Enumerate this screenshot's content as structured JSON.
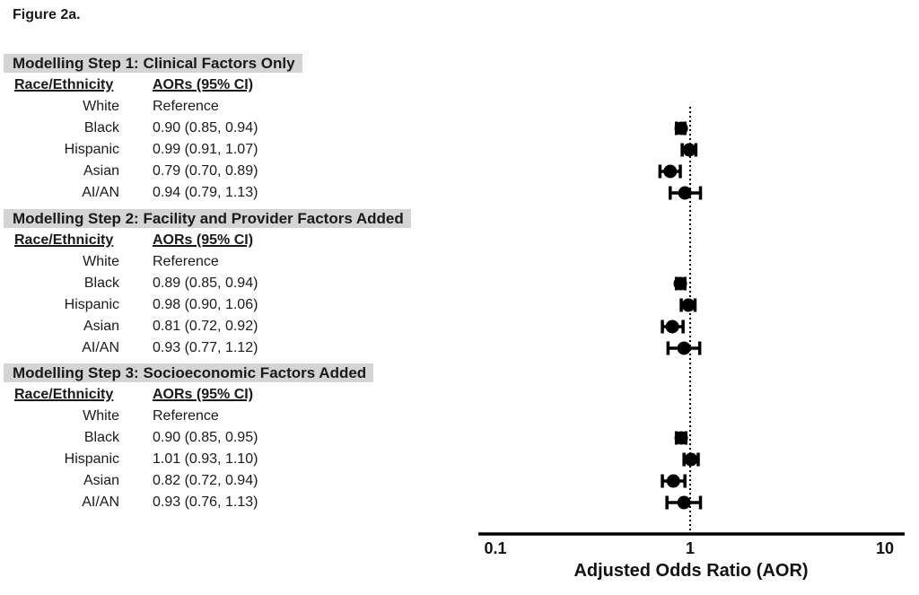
{
  "figure_label": "Figure 2a.",
  "columns": {
    "race": "Race/Ethnicity",
    "aor": "AORs (95% CI)"
  },
  "sections": [
    {
      "header": "Modelling Step 1: Clinical Factors Only",
      "rows": [
        {
          "race": "White",
          "value": "Reference"
        },
        {
          "race": "Black",
          "value": "0.90 (0.85, 0.94)"
        },
        {
          "race": "Hispanic",
          "value": "0.99 (0.91, 1.07)"
        },
        {
          "race": "Asian",
          "value": "0.79 (0.70, 0.89)"
        },
        {
          "race": "AI/AN",
          "value": "0.94 (0.79, 1.13)"
        }
      ]
    },
    {
      "header": "Modelling Step 2: Facility and Provider Factors Added",
      "rows": [
        {
          "race": "White",
          "value": "Reference"
        },
        {
          "race": "Black",
          "value": "0.89 (0.85, 0.94)"
        },
        {
          "race": "Hispanic",
          "value": "0.98 (0.90, 1.06)"
        },
        {
          "race": "Asian",
          "value": "0.81 (0.72, 0.92)"
        },
        {
          "race": "AI/AN",
          "value": "0.93 (0.77, 1.12)"
        }
      ]
    },
    {
      "header": "Modelling Step 3: Socioeconomic Factors Added",
      "rows": [
        {
          "race": "White",
          "value": "Reference"
        },
        {
          "race": "Black",
          "value": "0.90 (0.85, 0.95)"
        },
        {
          "race": "Hispanic",
          "value": "1.01 (0.93, 1.10)"
        },
        {
          "race": "Asian",
          "value": "0.82 (0.72, 0.94)"
        },
        {
          "race": "AI/AN",
          "value": "0.93 (0.76, 1.13)"
        }
      ]
    }
  ],
  "chart_data": {
    "type": "scatter",
    "variant": "forest-plot",
    "xscale": "log",
    "xlim": [
      0.1,
      10
    ],
    "xticks": [
      "0.1",
      "1",
      "10"
    ],
    "xtick_values": [
      0.1,
      1,
      10
    ],
    "xlabel": "Adjusted Odds Ratio (AOR)",
    "reference_line": 1.0,
    "grid": false,
    "marker": "filled-circle-with-ci-caps",
    "groups": [
      {
        "name": "Modelling Step 1: Clinical Factors Only",
        "points": [
          {
            "label": "White",
            "aor": null,
            "note": "Reference"
          },
          {
            "label": "Black",
            "aor": 0.9,
            "ci": [
              0.85,
              0.94
            ]
          },
          {
            "label": "Hispanic",
            "aor": 0.99,
            "ci": [
              0.91,
              1.07
            ]
          },
          {
            "label": "Asian",
            "aor": 0.79,
            "ci": [
              0.7,
              0.89
            ]
          },
          {
            "label": "AI/AN",
            "aor": 0.94,
            "ci": [
              0.79,
              1.13
            ]
          }
        ]
      },
      {
        "name": "Modelling Step 2: Facility and Provider Factors Added",
        "points": [
          {
            "label": "White",
            "aor": null,
            "note": "Reference"
          },
          {
            "label": "Black",
            "aor": 0.89,
            "ci": [
              0.85,
              0.94
            ]
          },
          {
            "label": "Hispanic",
            "aor": 0.98,
            "ci": [
              0.9,
              1.06
            ]
          },
          {
            "label": "Asian",
            "aor": 0.81,
            "ci": [
              0.72,
              0.92
            ]
          },
          {
            "label": "AI/AN",
            "aor": 0.93,
            "ci": [
              0.77,
              1.12
            ]
          }
        ]
      },
      {
        "name": "Modelling Step 3: Socioeconomic Factors Added",
        "points": [
          {
            "label": "White",
            "aor": null,
            "note": "Reference"
          },
          {
            "label": "Black",
            "aor": 0.9,
            "ci": [
              0.85,
              0.95
            ]
          },
          {
            "label": "Hispanic",
            "aor": 1.01,
            "ci": [
              0.93,
              1.1
            ]
          },
          {
            "label": "Asian",
            "aor": 0.82,
            "ci": [
              0.72,
              0.94
            ]
          },
          {
            "label": "AI/AN",
            "aor": 0.93,
            "ci": [
              0.76,
              1.13
            ]
          }
        ]
      }
    ],
    "colors": {
      "marker": "#000000",
      "reference_line": "#000000",
      "axis": "#000000"
    }
  },
  "colors": {
    "highlight": "#d4d4d4",
    "text": "#1a1a1a",
    "background": "#ffffff"
  }
}
